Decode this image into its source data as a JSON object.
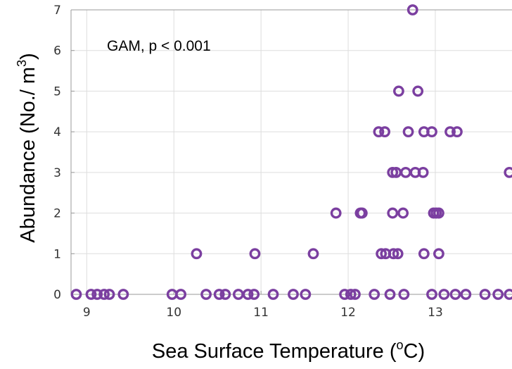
{
  "chart_data": {
    "type": "scatter",
    "annotation": "GAM, p < 0.001",
    "xlabel": "Sea Surface Temperature (",
    "xlabel_sup": "o",
    "xlabel_tail": "C)",
    "ylabel": "Abundance (No./ m",
    "ylabel_sup": "3",
    "ylabel_tail": ")",
    "xlim": [
      8.82,
      13.88
    ],
    "ylim": [
      0,
      7
    ],
    "xticks": [
      9,
      10,
      11,
      12,
      13
    ],
    "yticks": [
      0,
      1,
      2,
      3,
      4,
      5,
      6,
      7
    ],
    "grid": true,
    "colors": {
      "marker": "#7B3FA0",
      "grid": "#dddddd",
      "axis": "#999999"
    },
    "points": [
      {
        "x": 8.88,
        "y": 0
      },
      {
        "x": 9.05,
        "y": 0
      },
      {
        "x": 9.12,
        "y": 0
      },
      {
        "x": 9.2,
        "y": 0
      },
      {
        "x": 9.26,
        "y": 0
      },
      {
        "x": 9.42,
        "y": 0
      },
      {
        "x": 9.98,
        "y": 0
      },
      {
        "x": 10.08,
        "y": 0
      },
      {
        "x": 10.37,
        "y": 0
      },
      {
        "x": 10.52,
        "y": 0
      },
      {
        "x": 10.59,
        "y": 0
      },
      {
        "x": 10.74,
        "y": 0
      },
      {
        "x": 10.85,
        "y": 0
      },
      {
        "x": 10.92,
        "y": 0
      },
      {
        "x": 11.14,
        "y": 0
      },
      {
        "x": 11.37,
        "y": 0
      },
      {
        "x": 11.51,
        "y": 0
      },
      {
        "x": 11.96,
        "y": 0
      },
      {
        "x": 12.03,
        "y": 0
      },
      {
        "x": 12.08,
        "y": 0
      },
      {
        "x": 12.3,
        "y": 0
      },
      {
        "x": 12.48,
        "y": 0
      },
      {
        "x": 12.64,
        "y": 0
      },
      {
        "x": 12.96,
        "y": 0
      },
      {
        "x": 13.1,
        "y": 0
      },
      {
        "x": 13.23,
        "y": 0
      },
      {
        "x": 13.35,
        "y": 0
      },
      {
        "x": 13.57,
        "y": 0
      },
      {
        "x": 13.72,
        "y": 0
      },
      {
        "x": 13.85,
        "y": 0
      },
      {
        "x": 10.26,
        "y": 1
      },
      {
        "x": 10.93,
        "y": 1
      },
      {
        "x": 11.6,
        "y": 1
      },
      {
        "x": 12.38,
        "y": 1
      },
      {
        "x": 12.43,
        "y": 1
      },
      {
        "x": 12.52,
        "y": 1
      },
      {
        "x": 12.57,
        "y": 1
      },
      {
        "x": 12.87,
        "y": 1
      },
      {
        "x": 13.04,
        "y": 1
      },
      {
        "x": 11.86,
        "y": 2
      },
      {
        "x": 12.14,
        "y": 2
      },
      {
        "x": 12.16,
        "y": 2
      },
      {
        "x": 12.51,
        "y": 2
      },
      {
        "x": 12.63,
        "y": 2
      },
      {
        "x": 12.98,
        "y": 2
      },
      {
        "x": 13.01,
        "y": 2
      },
      {
        "x": 13.04,
        "y": 2
      },
      {
        "x": 12.51,
        "y": 3
      },
      {
        "x": 12.55,
        "y": 3
      },
      {
        "x": 12.66,
        "y": 3
      },
      {
        "x": 12.77,
        "y": 3
      },
      {
        "x": 12.86,
        "y": 3
      },
      {
        "x": 13.85,
        "y": 3
      },
      {
        "x": 12.35,
        "y": 4
      },
      {
        "x": 12.42,
        "y": 4
      },
      {
        "x": 12.69,
        "y": 4
      },
      {
        "x": 12.87,
        "y": 4
      },
      {
        "x": 12.96,
        "y": 4
      },
      {
        "x": 13.17,
        "y": 4
      },
      {
        "x": 13.25,
        "y": 4
      },
      {
        "x": 12.58,
        "y": 5
      },
      {
        "x": 12.8,
        "y": 5
      },
      {
        "x": 12.74,
        "y": 7
      }
    ]
  }
}
